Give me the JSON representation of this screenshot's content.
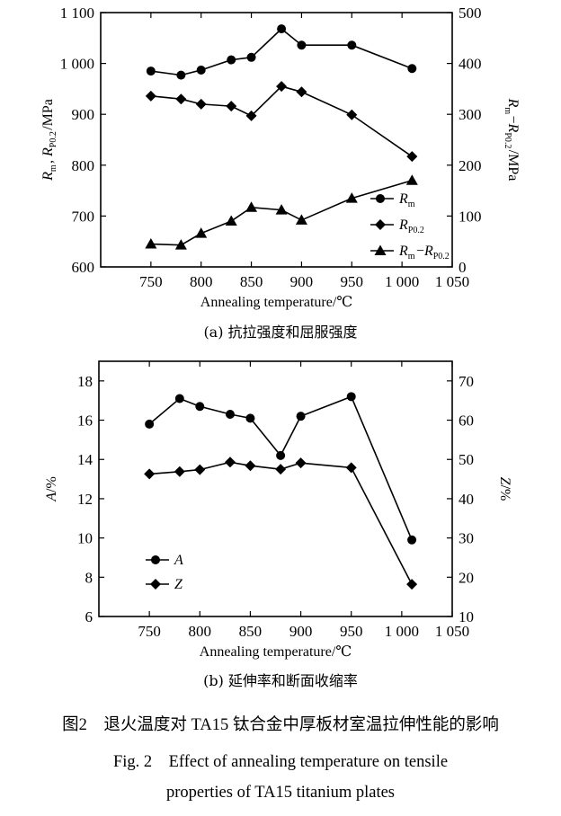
{
  "figure": {
    "caption_cn": "图2　退火温度对 TA15 钛合金中厚板材室温拉伸性能的影响",
    "caption_en_line1": "Fig. 2　Effect of annealing temperature on tensile",
    "caption_en_line2": "properties of TA15 titanium plates"
  },
  "chart_data": [
    {
      "type": "line",
      "subcaption": "(a) 抗拉强度和屈服强度",
      "xlabel": "Annealing temperature/℃",
      "ylabel_left": "Rm, Rp0.2/MPa",
      "ylabel_right": "Rm−Rp0.2/MPa",
      "xlim": [
        700,
        1050
      ],
      "xticks": [
        750,
        800,
        850,
        900,
        950,
        1000,
        1050
      ],
      "xtick_labels": [
        "750",
        "800",
        "850",
        "900",
        "950",
        "1 000",
        "1 050"
      ],
      "ylim_left": [
        600,
        1100
      ],
      "yticks_left": [
        600,
        700,
        800,
        900,
        1000,
        1100
      ],
      "ytick_labels_left": [
        "600",
        "700",
        "800",
        "900",
        "1 000",
        "1 100"
      ],
      "ylim_right": [
        0,
        500
      ],
      "yticks_right": [
        0,
        100,
        200,
        300,
        400,
        500
      ],
      "ytick_labels_right": [
        "0",
        "100",
        "200",
        "300",
        "400",
        "500"
      ],
      "grid": false,
      "legend_position": "bottom-right",
      "series": [
        {
          "name": "Rm",
          "axis": "left",
          "marker": "circle",
          "x": [
            750,
            780,
            800,
            830,
            850,
            880,
            900,
            950,
            1010
          ],
          "y": [
            985,
            977,
            987,
            1007,
            1012,
            1068,
            1036,
            1036,
            990
          ]
        },
        {
          "name": "Rp0.2",
          "axis": "left",
          "marker": "diamond",
          "x": [
            750,
            780,
            800,
            830,
            850,
            880,
            900,
            950,
            1010
          ],
          "y": [
            936,
            930,
            920,
            916,
            897,
            955,
            944,
            899,
            817
          ]
        },
        {
          "name": "Rm−Rp0.2",
          "axis": "right",
          "marker": "triangle",
          "x": [
            750,
            780,
            800,
            830,
            850,
            880,
            900,
            950,
            1010
          ],
          "y": [
            45,
            43,
            66,
            90,
            117,
            112,
            92,
            135,
            170
          ]
        }
      ]
    },
    {
      "type": "line",
      "subcaption": "(b) 延伸率和断面收缩率",
      "xlabel": "Annealing temperature/℃",
      "ylabel_left": "A/%",
      "ylabel_right": "Z/%",
      "xlim": [
        700,
        1050
      ],
      "xticks": [
        750,
        800,
        850,
        900,
        950,
        1000,
        1050
      ],
      "xtick_labels": [
        "750",
        "800",
        "850",
        "900",
        "950",
        "1 000",
        "1 050"
      ],
      "ylim_left": [
        6,
        19
      ],
      "yticks_left": [
        6,
        8,
        10,
        12,
        14,
        16,
        18
      ],
      "ytick_labels_left": [
        "6",
        "8",
        "10",
        "12",
        "14",
        "16",
        "18"
      ],
      "ylim_right": [
        10,
        75
      ],
      "yticks_right": [
        10,
        20,
        30,
        40,
        50,
        60,
        70
      ],
      "ytick_labels_right": [
        "10",
        "20",
        "30",
        "40",
        "50",
        "60",
        "70"
      ],
      "grid": false,
      "legend_position": "bottom-left",
      "series": [
        {
          "name": "A",
          "axis": "left",
          "marker": "circle",
          "x": [
            750,
            780,
            800,
            830,
            850,
            880,
            900,
            950,
            1010
          ],
          "y": [
            15.8,
            17.1,
            16.7,
            16.3,
            16.1,
            14.2,
            16.2,
            17.2,
            9.9
          ]
        },
        {
          "name": "Z",
          "axis": "right",
          "marker": "diamond",
          "x": [
            750,
            780,
            800,
            830,
            850,
            880,
            900,
            950,
            1010
          ],
          "y": [
            46.3,
            46.9,
            47.4,
            49.3,
            48.4,
            47.5,
            49.1,
            47.9,
            18.2
          ]
        }
      ]
    }
  ]
}
